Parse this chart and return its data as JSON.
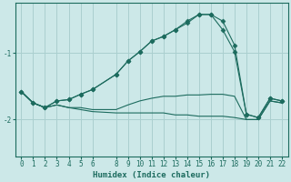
{
  "xlabel": "Humidex (Indice chaleur)",
  "background_color": "#cce8e8",
  "grid_color": "#aacfcf",
  "line_color": "#1c6b5e",
  "xlim": [
    -0.5,
    22.5
  ],
  "ylim": [
    -2.55,
    -0.25
  ],
  "yticks": [
    -2.0,
    -1.0
  ],
  "xticks": [
    0,
    1,
    2,
    3,
    4,
    5,
    6,
    8,
    9,
    10,
    11,
    12,
    13,
    14,
    15,
    16,
    17,
    18,
    19,
    20,
    21,
    22
  ],
  "series1_x": [
    0,
    1,
    2,
    3,
    4,
    5,
    6,
    8,
    9,
    10,
    11,
    12,
    13,
    14,
    15,
    16,
    17,
    18,
    19,
    20,
    21,
    22
  ],
  "series1_y": [
    -1.58,
    -1.75,
    -1.82,
    -1.78,
    -1.82,
    -1.85,
    -1.88,
    -1.9,
    -1.9,
    -1.9,
    -1.9,
    -1.9,
    -1.93,
    -1.93,
    -1.95,
    -1.95,
    -1.95,
    -1.97,
    -2.0,
    -2.0,
    -1.72,
    -1.75
  ],
  "series2_x": [
    0,
    1,
    2,
    3,
    4,
    5,
    6,
    8,
    9,
    10,
    11,
    12,
    13,
    14,
    15,
    16,
    17,
    18,
    19,
    20,
    21,
    22
  ],
  "series2_y": [
    -1.58,
    -1.75,
    -1.82,
    -1.78,
    -1.82,
    -1.82,
    -1.85,
    -1.85,
    -1.78,
    -1.72,
    -1.68,
    -1.65,
    -1.65,
    -1.63,
    -1.63,
    -1.62,
    -1.62,
    -1.65,
    -2.0,
    -2.0,
    -1.72,
    -1.75
  ],
  "series3_x": [
    0,
    1,
    2,
    3,
    4,
    5,
    6,
    8,
    9,
    10,
    11,
    12,
    13,
    14,
    15,
    16,
    17,
    18,
    19,
    20,
    21,
    22
  ],
  "series3_y": [
    -1.58,
    -1.75,
    -1.82,
    -1.72,
    -1.7,
    -1.62,
    -1.55,
    -1.32,
    -1.12,
    -0.98,
    -0.82,
    -0.75,
    -0.65,
    -0.55,
    -0.42,
    -0.42,
    -0.52,
    -0.88,
    -1.92,
    -1.97,
    -1.68,
    -1.72
  ],
  "series4_x": [
    0,
    1,
    2,
    3,
    4,
    5,
    6,
    8,
    9,
    10,
    11,
    12,
    13,
    14,
    15,
    16,
    17,
    18,
    19,
    20,
    21,
    22
  ],
  "series4_y": [
    -1.58,
    -1.75,
    -1.82,
    -1.72,
    -1.7,
    -1.62,
    -1.55,
    -1.32,
    -1.12,
    -0.98,
    -0.82,
    -0.75,
    -0.65,
    -0.52,
    -0.42,
    -0.42,
    -0.65,
    -0.98,
    -1.92,
    -1.97,
    -1.68,
    -1.72
  ]
}
